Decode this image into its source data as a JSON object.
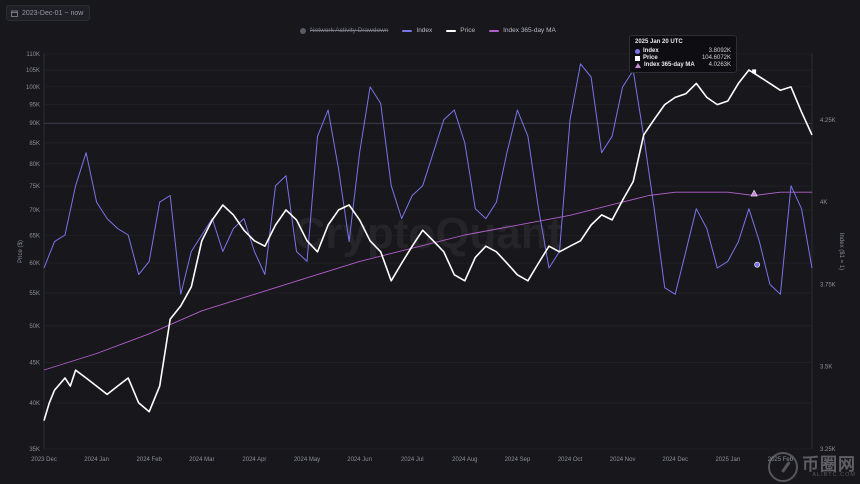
{
  "date_range": {
    "label": "2023-Dec-01 ~ now",
    "icon": "calendar-icon"
  },
  "legend": [
    {
      "key": "network_activity",
      "label": "Network Activity Drawdown",
      "color": "#5b5b66",
      "hidden": true
    },
    {
      "key": "index",
      "label": "Index",
      "color": "#7b74e8"
    },
    {
      "key": "price",
      "label": "Price",
      "color": "#ffffff"
    },
    {
      "key": "ma",
      "label": "Index 365-day MA",
      "color": "#b060c8"
    }
  ],
  "tooltip": {
    "title": "2025 Jan 20 UTC",
    "rows": [
      {
        "label": "Index",
        "value": "3.8092K",
        "color": "#7b74e8",
        "marker": "dot"
      },
      {
        "label": "Price",
        "value": "104.6072K",
        "color": "#ffffff",
        "marker": "square"
      },
      {
        "label": "Index 365-day MA",
        "value": "4.0263K",
        "color": "#c98ad8",
        "marker": "triangle"
      }
    ]
  },
  "watermark": {
    "text": "CryptoQuant",
    "logo_cn": "币圈网",
    "logo_url": "ALIBTC.COM"
  },
  "chart_data": {
    "type": "line",
    "x_labels": [
      "2023 Dec",
      "2024 Jan",
      "2024 Feb",
      "2024 Mar",
      "2024 Apr",
      "2024 May",
      "2024 Jun",
      "2024 Jul",
      "2024 Aug",
      "2024 Sep",
      "2024 Oct",
      "2024 Nov",
      "2024 Dec",
      "2025 Jan",
      "2025 Feb"
    ],
    "left_axis": {
      "label": "Price ($)",
      "scale": "log",
      "ticks": [
        35,
        40,
        45,
        50,
        55,
        60,
        65,
        70,
        75,
        80,
        85,
        90,
        95,
        100,
        105,
        110
      ],
      "tick_labels": [
        "35K",
        "40K",
        "45K",
        "50K",
        "55K",
        "60K",
        "65K",
        "70K",
        "75K",
        "80K",
        "85K",
        "90K",
        "95K",
        "100K",
        "105K",
        "110K"
      ],
      "range": [
        35,
        110
      ]
    },
    "right_axis": {
      "label": "Index ($1 = 1)",
      "ticks": [
        3.25,
        3.5,
        3.75,
        4.0,
        4.25
      ],
      "tick_labels": [
        "3.25K",
        "3.5K",
        "3.75K",
        "4K",
        "4.25K"
      ],
      "range": [
        3.25,
        4.45
      ]
    },
    "grid": {
      "horizontal": true,
      "vertical": false,
      "highlight_tick": 90
    },
    "series": [
      {
        "name": "Price",
        "axis": "left",
        "color": "#ffffff",
        "x": [
          0,
          0.1,
          0.2,
          0.4,
          0.5,
          0.6,
          0.8,
          1.0,
          1.2,
          1.4,
          1.6,
          1.8,
          2.0,
          2.2,
          2.4,
          2.6,
          2.8,
          3.0,
          3.2,
          3.4,
          3.6,
          3.8,
          4.0,
          4.2,
          4.4,
          4.6,
          4.8,
          5.0,
          5.2,
          5.4,
          5.6,
          5.8,
          6.0,
          6.2,
          6.4,
          6.6,
          6.8,
          7.0,
          7.2,
          7.4,
          7.6,
          7.8,
          8.0,
          8.2,
          8.4,
          8.6,
          8.8,
          9.0,
          9.2,
          9.4,
          9.6,
          9.8,
          10.0,
          10.2,
          10.4,
          10.6,
          10.8,
          11.0,
          11.2,
          11.4,
          11.6,
          11.8,
          12.0,
          12.2,
          12.4,
          12.6,
          12.8,
          13.0,
          13.2,
          13.4,
          13.6,
          13.8,
          14.0,
          14.2,
          14.4,
          14.6
        ],
        "y": [
          38,
          40,
          41.5,
          43,
          42,
          44,
          43,
          42,
          41,
          42,
          43,
          40,
          39,
          42,
          51,
          53,
          56,
          64,
          68,
          71,
          69,
          66,
          64,
          63,
          67,
          70,
          68,
          64,
          62,
          67,
          70,
          71,
          68,
          64,
          62,
          57,
          60,
          63,
          66,
          64,
          62,
          58,
          57,
          61,
          63,
          62,
          60,
          58,
          57,
          60,
          63,
          62,
          63,
          64,
          67,
          69,
          68,
          72,
          76,
          87,
          91,
          95,
          97,
          98,
          101,
          97,
          95,
          96,
          101,
          105,
          103,
          101,
          99,
          100,
          93,
          87
        ]
      },
      {
        "name": "Index",
        "axis": "right",
        "color": "#7b74e8",
        "x": [
          0,
          0.2,
          0.4,
          0.6,
          0.8,
          1.0,
          1.2,
          1.4,
          1.6,
          1.8,
          2.0,
          2.2,
          2.4,
          2.6,
          2.8,
          3.0,
          3.2,
          3.4,
          3.6,
          3.8,
          4.0,
          4.2,
          4.4,
          4.6,
          4.8,
          5.0,
          5.2,
          5.4,
          5.6,
          5.8,
          6.0,
          6.2,
          6.4,
          6.6,
          6.8,
          7.0,
          7.2,
          7.4,
          7.6,
          7.8,
          8.0,
          8.2,
          8.4,
          8.6,
          8.8,
          9.0,
          9.2,
          9.4,
          9.6,
          9.8,
          10.0,
          10.2,
          10.4,
          10.6,
          10.8,
          11.0,
          11.2,
          11.4,
          11.6,
          11.8,
          12.0,
          12.2,
          12.4,
          12.6,
          12.8,
          13.0,
          13.2,
          13.4,
          13.6,
          13.8,
          14.0,
          14.2,
          14.4,
          14.6
        ],
        "y": [
          3.8,
          3.88,
          3.9,
          4.05,
          4.15,
          4.0,
          3.95,
          3.92,
          3.9,
          3.78,
          3.82,
          4.0,
          4.02,
          3.72,
          3.85,
          3.9,
          3.95,
          3.85,
          3.92,
          3.95,
          3.85,
          3.78,
          4.05,
          4.08,
          3.85,
          3.82,
          4.2,
          4.28,
          4.1,
          3.88,
          4.15,
          4.35,
          4.3,
          4.05,
          3.95,
          4.02,
          4.05,
          4.15,
          4.25,
          4.28,
          4.18,
          3.98,
          3.95,
          4.0,
          4.15,
          4.28,
          4.2,
          3.98,
          3.8,
          3.85,
          4.25,
          4.42,
          4.38,
          4.15,
          4.2,
          4.35,
          4.4,
          4.2,
          3.98,
          3.74,
          3.72,
          3.85,
          3.98,
          3.92,
          3.8,
          3.82,
          3.88,
          3.98,
          3.88,
          3.75,
          3.72,
          4.05,
          3.98,
          3.8
        ]
      },
      {
        "name": "Index 365-day MA",
        "axis": "right",
        "color": "#b060c8",
        "x": [
          0,
          1,
          2,
          3,
          4,
          5,
          6,
          7,
          8,
          9,
          10,
          11,
          11.5,
          12,
          12.5,
          13,
          13.5,
          14,
          14.6
        ],
        "y": [
          3.49,
          3.54,
          3.6,
          3.67,
          3.72,
          3.77,
          3.82,
          3.86,
          3.9,
          3.93,
          3.96,
          4.0,
          4.02,
          4.03,
          4.03,
          4.03,
          4.02,
          4.03,
          4.03
        ]
      }
    ]
  }
}
